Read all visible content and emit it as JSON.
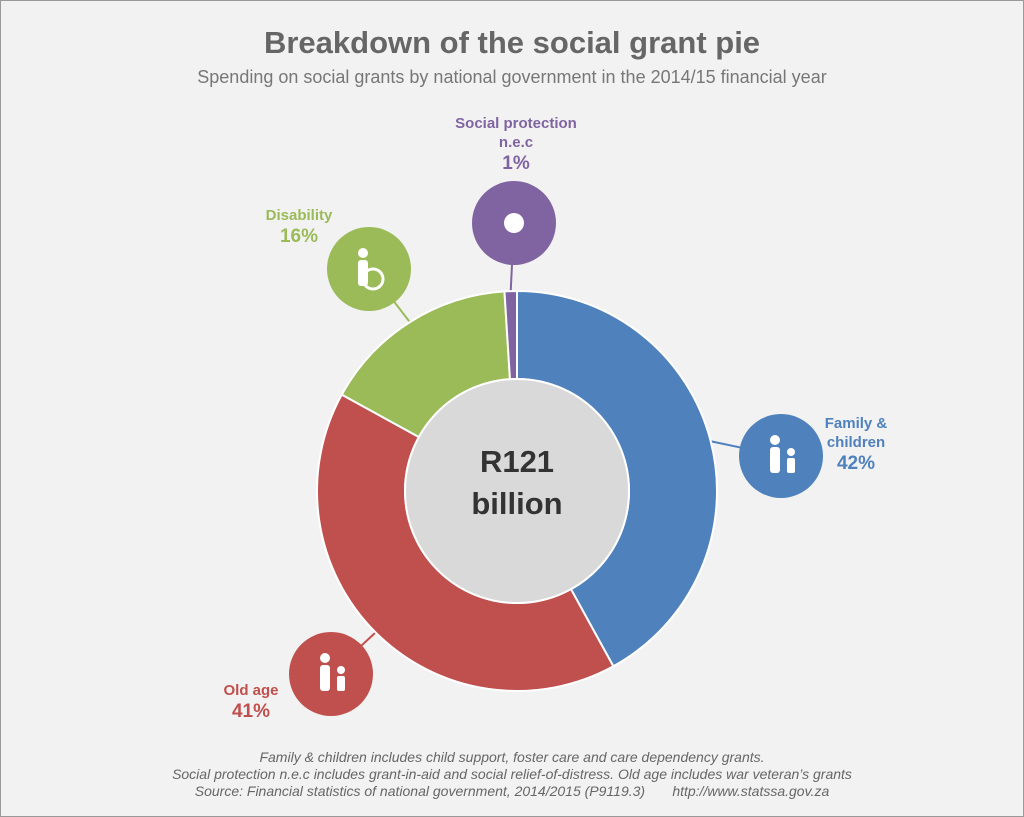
{
  "chart_data": {
    "type": "pie",
    "title": "Breakdown of the social grant pie",
    "subtitle": "Spending on social grants by national government in the 2014/15 financial year",
    "center_label": "R121 billion",
    "categories": [
      "Family & children",
      "Old age",
      "Disability",
      "Social protection n.e.c"
    ],
    "values": [
      42,
      41,
      16,
      1
    ],
    "value_labels": [
      "42%",
      "41%",
      "16%",
      "1%"
    ],
    "colors": [
      "#4f81bd",
      "#c0504d",
      "#9bbb59",
      "#8064a2"
    ],
    "notes": [
      "Family & children includes child support, foster care and care dependency grants.",
      "Social protection n.e.c includes grant-in-aid and social relief-of-distress. Old age includes war veteran’s grants",
      "Source: Financial statistics of national government, 2014/2015 (P9119.3)       http://www.statssa.gov.za"
    ]
  }
}
